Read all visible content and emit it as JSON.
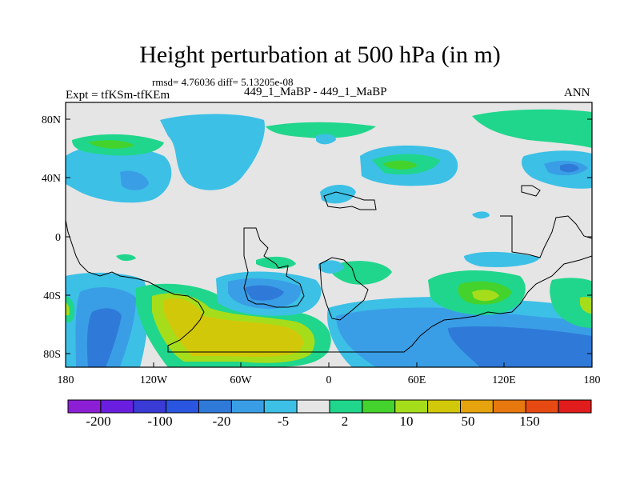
{
  "title": "Height perturbation at 500 hPa (in m)",
  "stats": "rmsd= 4.76036 diff= 5.13205e-08",
  "left_label": "Expt = tfKSm-tfKEm",
  "center_label": "449_1_MaBP - 449_1_MaBP",
  "right_label": "ANN",
  "lat_ticks": [
    "80N",
    "40N",
    "0",
    "40S",
    "80S"
  ],
  "lon_ticks": [
    "180",
    "120W",
    "60W",
    "0",
    "60E",
    "120E",
    "180"
  ],
  "colorbar": {
    "colors": [
      "#8c1fd6",
      "#6a1fe0",
      "#3a3ad6",
      "#2a55e0",
      "#2f7ad9",
      "#3a9ee6",
      "#3cc0e6",
      "#e5e5e5",
      "#20d68c",
      "#44d22c",
      "#a6dd1a",
      "#d2c80a",
      "#e6a30d",
      "#e6780d",
      "#e64a12",
      "#e01c1c"
    ],
    "labels": [
      "-200",
      "-100",
      "-20",
      "-5",
      "2",
      "10",
      "50",
      "150"
    ],
    "label_colors": [
      "#000000"
    ]
  },
  "colors": {
    "background": "#e5e5e5",
    "neg_light": "#3cc0e6",
    "neg_mid": "#3a9ee6",
    "neg_dark": "#2f7ad9",
    "neg_deep": "#2a55e0",
    "pos_light": "#20d68c",
    "pos_mid": "#44d22c",
    "pos_yellow": "#a6dd1a",
    "pos_orange": "#d2c80a"
  }
}
